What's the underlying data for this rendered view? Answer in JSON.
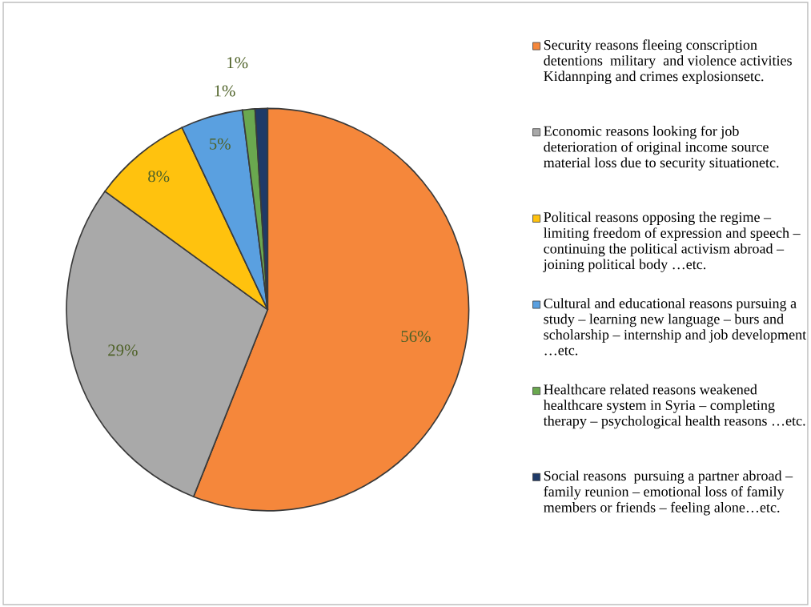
{
  "chart_data": {
    "type": "pie",
    "categories": [
      "Security reasons fleeing conscription detentions  military  and violence activities  Kidannping and crimes explosionsetc.",
      "Economic reasons looking for job deterioration of original income source  material loss due to security situationetc.",
      "Political reasons opposing the regime – limiting freedom of expression and speech – continuing the political activism abroad – joining political body …etc.",
      "Cultural and educational reasons pursuing a study – learning new language – burs and scholarship – internship and job development …etc.",
      "Healthcare related reasons weakened healthcare system in Syria – completing therapy – psychological health reasons …etc.",
      "Social reasons  pursuing a partner abroad – family reunion – emotional loss of family members or friends – feeling alone…etc."
    ],
    "values": [
      56,
      29,
      8,
      5,
      1,
      1
    ],
    "colors": [
      "#f5873b",
      "#a9a9a9",
      "#ffc20e",
      "#5aa0e0",
      "#6aa84f",
      "#1f3a68"
    ],
    "value_labels": [
      "56%",
      "29%",
      "8%",
      "5%",
      "1%",
      "1%"
    ],
    "legend": "right"
  }
}
